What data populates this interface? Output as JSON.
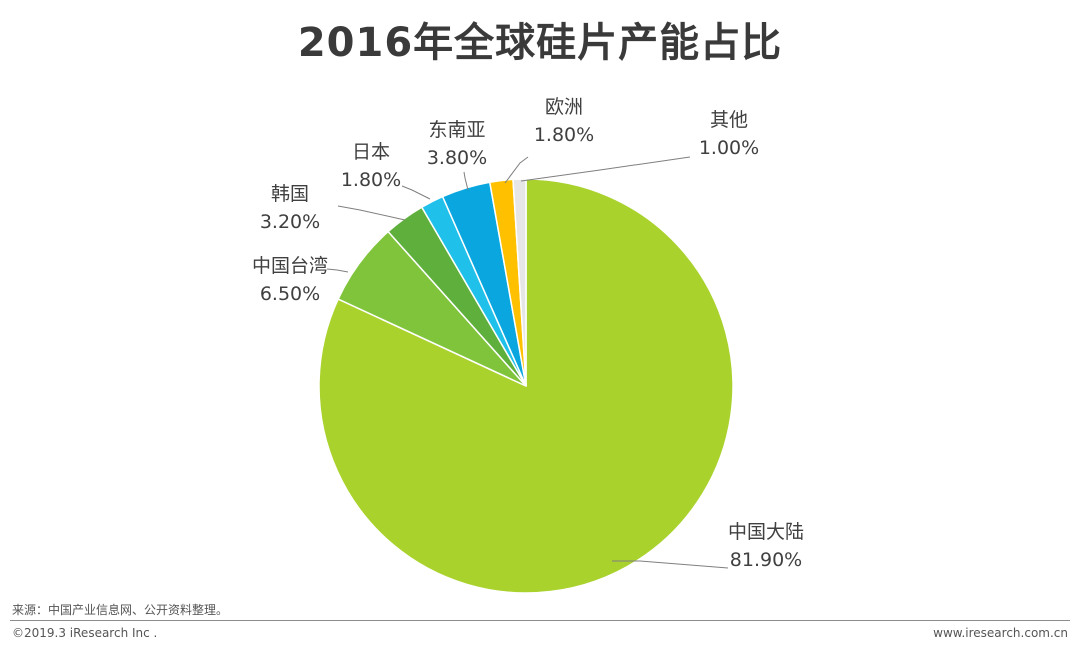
{
  "title": "2016年全球硅片产能占比",
  "footer": {
    "source": "来源：中国产业信息网、公开资料整理。",
    "copyright": "©2019.3 iResearch Inc .",
    "website": "www.iresearch.com.cn"
  },
  "chart_data": {
    "type": "pie",
    "title": "2016年全球硅片产能占比",
    "start_angle_deg": 0,
    "direction": "clockwise",
    "slices": [
      {
        "label": "中国大陆",
        "value": 81.9,
        "value_label": "81.90%",
        "color": "#a9d22c"
      },
      {
        "label": "中国台湾",
        "value": 6.5,
        "value_label": "6.50%",
        "color": "#7fc43a"
      },
      {
        "label": "韩国",
        "value": 3.2,
        "value_label": "3.20%",
        "color": "#5faf3c"
      },
      {
        "label": "日本",
        "value": 1.8,
        "value_label": "1.80%",
        "color": "#1fc0ea"
      },
      {
        "label": "东南亚",
        "value": 3.8,
        "value_label": "3.80%",
        "color": "#0aa6df"
      },
      {
        "label": "欧洲",
        "value": 1.8,
        "value_label": "1.80%",
        "color": "#ffc000"
      },
      {
        "label": "其他",
        "value": 1.0,
        "value_label": "1.00%",
        "color": "#e6e6e6"
      }
    ]
  }
}
